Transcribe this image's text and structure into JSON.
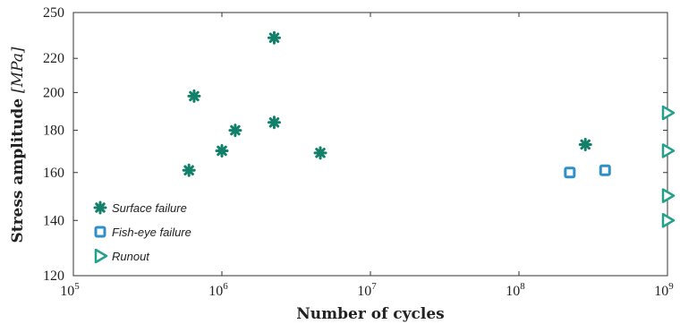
{
  "chart_data": {
    "type": "scatter",
    "title": "",
    "xlabel": "Number of cycles",
    "ylabel": "Stress amplitude",
    "ylabel_unit": "[MPa]",
    "x_scale": "log",
    "y_scale": "log",
    "xlim": [
      100000,
      1000000000
    ],
    "ylim": [
      120,
      250
    ],
    "x_ticks": [
      {
        "value": 100000,
        "base": "10",
        "exp": "5"
      },
      {
        "value": 1000000,
        "base": "10",
        "exp": "6"
      },
      {
        "value": 10000000,
        "base": "10",
        "exp": "7"
      },
      {
        "value": 100000000,
        "base": "10",
        "exp": "8"
      },
      {
        "value": 1000000000,
        "base": "10",
        "exp": "9"
      }
    ],
    "y_ticks": [
      "120",
      "140",
      "160",
      "180",
      "200",
      "220",
      "250"
    ],
    "grid": false,
    "legend_position": "bottom-left",
    "series": [
      {
        "name": "Surface failure",
        "marker": "asterisk",
        "color": "#13806a",
        "points": [
          {
            "x": 600000,
            "y": 161
          },
          {
            "x": 650000,
            "y": 198
          },
          {
            "x": 1000000,
            "y": 170
          },
          {
            "x": 1230000,
            "y": 180
          },
          {
            "x": 2250000,
            "y": 184
          },
          {
            "x": 2250000,
            "y": 233
          },
          {
            "x": 4600000,
            "y": 169
          },
          {
            "x": 280000000,
            "y": 173
          }
        ]
      },
      {
        "name": "Fish-eye failure",
        "marker": "square",
        "color": "#2f8fc7",
        "points": [
          {
            "x": 220000000,
            "y": 160
          },
          {
            "x": 380000000,
            "y": 161
          }
        ]
      },
      {
        "name": "Runout",
        "marker": "triangle-right",
        "color": "#25a08a",
        "points": [
          {
            "x": 1000000000,
            "y": 189
          },
          {
            "x": 1000000000,
            "y": 170
          },
          {
            "x": 1000000000,
            "y": 150
          },
          {
            "x": 1000000000,
            "y": 140
          }
        ]
      }
    ]
  }
}
